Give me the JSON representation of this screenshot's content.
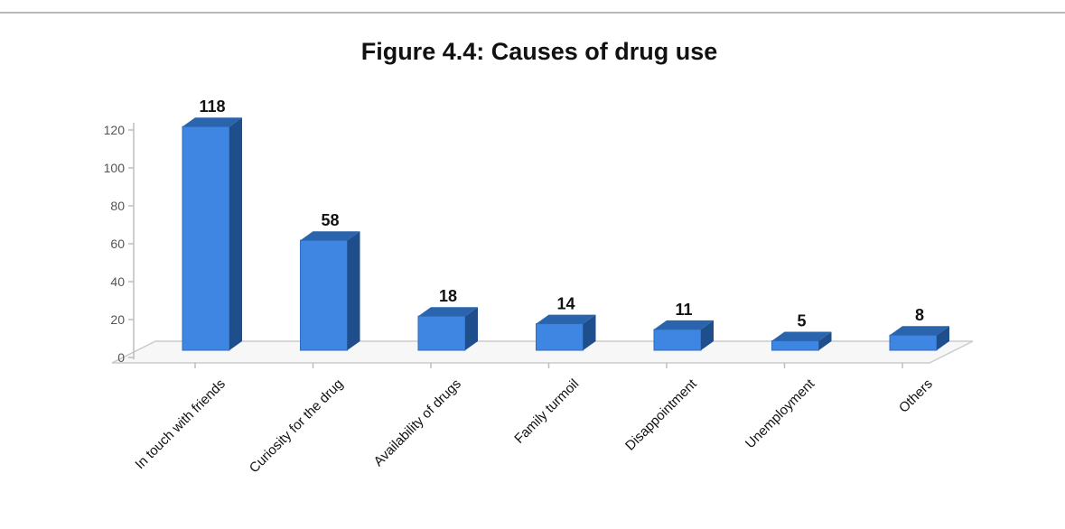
{
  "chart_data": {
    "type": "bar",
    "title": "Figure 4.4: Causes of drug use",
    "xlabel": "",
    "ylabel": "",
    "categories": [
      "In touch with friends",
      "Curiosity for the drug",
      "Availability of drugs",
      "Family turmoil",
      "Disappointment",
      "Unemployment",
      "Others"
    ],
    "values": [
      118,
      58,
      18,
      14,
      11,
      5,
      8
    ],
    "ylim": [
      0,
      120
    ],
    "yticks": [
      0,
      20,
      40,
      60,
      80,
      100,
      120
    ],
    "data_labels": true,
    "grid": false,
    "legend": "none",
    "style": "3d-column",
    "colors": {
      "front": "#3f86e2",
      "side": "#1e4f8c",
      "top": "#2a64ad",
      "floor": "#cccccc"
    }
  }
}
